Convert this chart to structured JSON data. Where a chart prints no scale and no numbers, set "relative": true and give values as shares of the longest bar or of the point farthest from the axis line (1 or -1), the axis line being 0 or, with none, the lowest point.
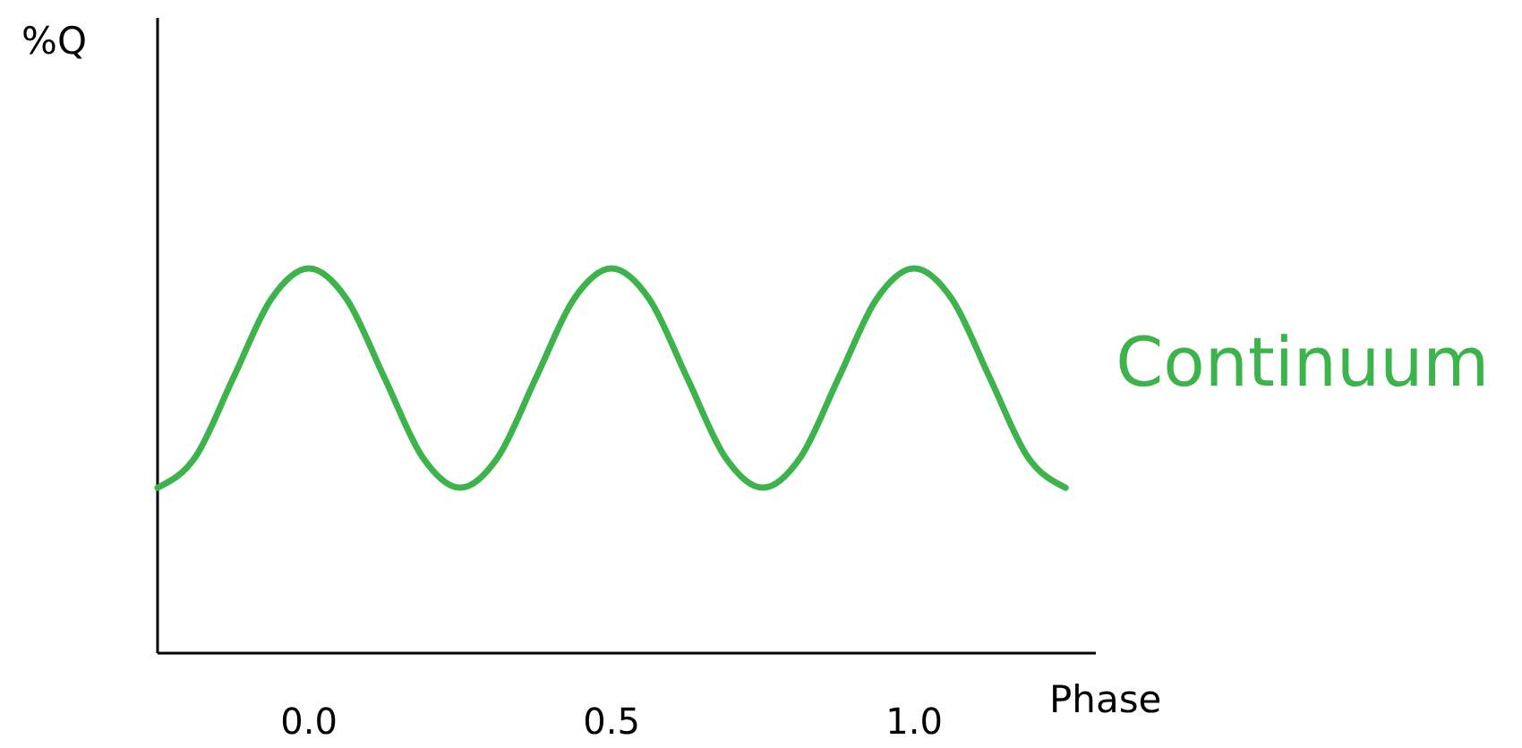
{
  "chart_data": {
    "type": "line",
    "xlabel": "Phase",
    "annotations": [
      "%Q"
    ],
    "relative": true,
    "x": [
      -0.25,
      -0.1875,
      -0.125,
      -0.0625,
      0,
      0.0625,
      0.125,
      0.1875,
      0.25,
      0.3125,
      0.375,
      0.4375,
      0.5,
      0.5625,
      0.625,
      0.6875,
      0.75,
      0.8125,
      0.875,
      0.9375,
      1,
      1.0625,
      1.125,
      1.1875,
      1.25
    ],
    "xlim": [
      -0.25,
      1.3
    ],
    "xticks": [
      {
        "value": 0,
        "label": "0.0"
      },
      {
        "value": 0.5,
        "label": "0.5"
      },
      {
        "value": 1,
        "label": "1.0"
      }
    ],
    "series": [
      {
        "name": "Continuum",
        "color": "#3cb44b",
        "values": [
          0.43,
          0.51,
          0.715,
          0.92,
          1,
          0.92,
          0.715,
          0.51,
          0.43,
          0.51,
          0.715,
          0.92,
          1,
          0.92,
          0.715,
          0.51,
          0.43,
          0.51,
          0.715,
          0.92,
          1,
          0.92,
          0.715,
          0.51,
          0.43
        ]
      }
    ]
  }
}
